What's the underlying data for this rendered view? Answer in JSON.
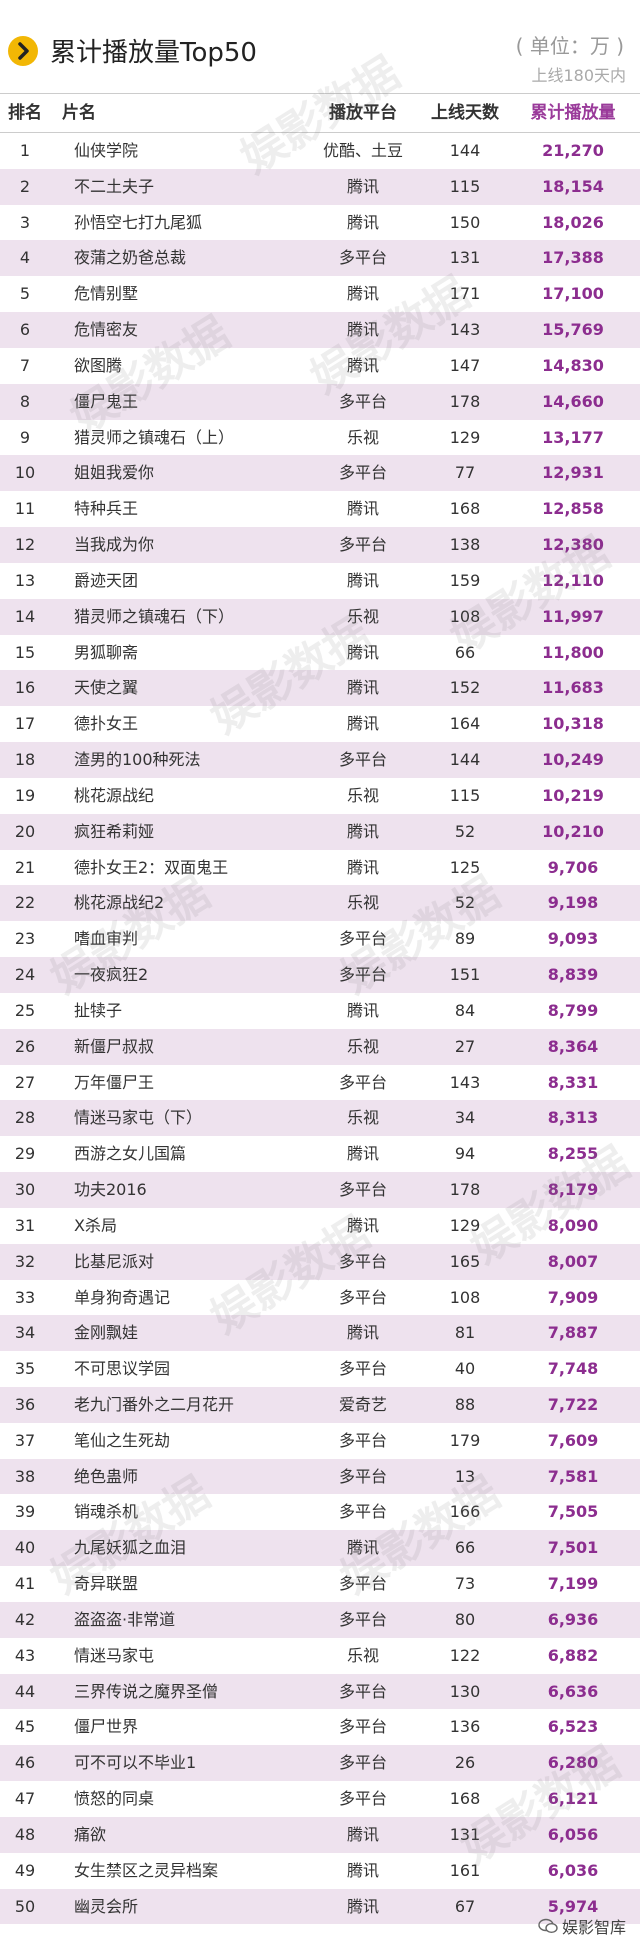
{
  "header": {
    "title": "累计播放量Top50",
    "unit": "( 单位：万 )",
    "days_note": "上线180天内",
    "badge_icon": "chevron-right-icon",
    "badge_color": "#f2b705"
  },
  "columns": {
    "rank": "排名",
    "name": "片名",
    "platform": "播放平台",
    "days": "上线天数",
    "plays": "累计播放量"
  },
  "rows": [
    {
      "rank": "1",
      "name": "仙侠学院",
      "platform": "优酷、土豆",
      "days": "144",
      "plays": "21,270"
    },
    {
      "rank": "2",
      "name": "不二土夫子",
      "platform": "腾讯",
      "days": "115",
      "plays": "18,154"
    },
    {
      "rank": "3",
      "name": "孙悟空七打九尾狐",
      "platform": "腾讯",
      "days": "150",
      "plays": "18,026"
    },
    {
      "rank": "4",
      "name": "夜蒲之奶爸总裁",
      "platform": "多平台",
      "days": "131",
      "plays": "17,388"
    },
    {
      "rank": "5",
      "name": "危情别墅",
      "platform": "腾讯",
      "days": "171",
      "plays": "17,100"
    },
    {
      "rank": "6",
      "name": "危情密友",
      "platform": "腾讯",
      "days": "143",
      "plays": "15,769"
    },
    {
      "rank": "7",
      "name": "欲图腾",
      "platform": "腾讯",
      "days": "147",
      "plays": "14,830"
    },
    {
      "rank": "8",
      "name": "僵尸鬼王",
      "platform": "多平台",
      "days": "178",
      "plays": "14,660"
    },
    {
      "rank": "9",
      "name": "猎灵师之镇魂石（上）",
      "platform": "乐视",
      "days": "129",
      "plays": "13,177"
    },
    {
      "rank": "10",
      "name": "姐姐我爱你",
      "platform": "多平台",
      "days": "77",
      "plays": "12,931"
    },
    {
      "rank": "11",
      "name": "特种兵王",
      "platform": "腾讯",
      "days": "168",
      "plays": "12,858"
    },
    {
      "rank": "12",
      "name": "当我成为你",
      "platform": "多平台",
      "days": "138",
      "plays": "12,380"
    },
    {
      "rank": "13",
      "name": "爵迹天团",
      "platform": "腾讯",
      "days": "159",
      "plays": "12,110"
    },
    {
      "rank": "14",
      "name": "猎灵师之镇魂石（下）",
      "platform": "乐视",
      "days": "108",
      "plays": "11,997"
    },
    {
      "rank": "15",
      "name": "男狐聊斋",
      "platform": "腾讯",
      "days": "66",
      "plays": "11,800"
    },
    {
      "rank": "16",
      "name": "天使之翼",
      "platform": "腾讯",
      "days": "152",
      "plays": "11,683"
    },
    {
      "rank": "17",
      "name": "德扑女王",
      "platform": "腾讯",
      "days": "164",
      "plays": "10,318"
    },
    {
      "rank": "18",
      "name": "渣男的100种死法",
      "platform": "多平台",
      "days": "144",
      "plays": "10,249"
    },
    {
      "rank": "19",
      "name": "桃花源战纪",
      "platform": "乐视",
      "days": "115",
      "plays": "10,219"
    },
    {
      "rank": "20",
      "name": "疯狂希莉娅",
      "platform": "腾讯",
      "days": "52",
      "plays": "10,210"
    },
    {
      "rank": "21",
      "name": "德扑女王2：双面鬼王",
      "platform": "腾讯",
      "days": "125",
      "plays": "9,706"
    },
    {
      "rank": "22",
      "name": "桃花源战纪2",
      "platform": "乐视",
      "days": "52",
      "plays": "9,198"
    },
    {
      "rank": "23",
      "name": "嗜血审判",
      "platform": "多平台",
      "days": "89",
      "plays": "9,093"
    },
    {
      "rank": "24",
      "name": "一夜疯狂2",
      "platform": "多平台",
      "days": "151",
      "plays": "8,839"
    },
    {
      "rank": "25",
      "name": "扯犊子",
      "platform": "腾讯",
      "days": "84",
      "plays": "8,799"
    },
    {
      "rank": "26",
      "name": "新僵尸叔叔",
      "platform": "乐视",
      "days": "27",
      "plays": "8,364"
    },
    {
      "rank": "27",
      "name": "万年僵尸王",
      "platform": "多平台",
      "days": "143",
      "plays": "8,331"
    },
    {
      "rank": "28",
      "name": "情迷马家屯（下）",
      "platform": "乐视",
      "days": "34",
      "plays": "8,313"
    },
    {
      "rank": "29",
      "name": "西游之女儿国篇",
      "platform": "腾讯",
      "days": "94",
      "plays": "8,255"
    },
    {
      "rank": "30",
      "name": "功夫2016",
      "platform": "多平台",
      "days": "178",
      "plays": "8,179"
    },
    {
      "rank": "31",
      "name": "X杀局",
      "platform": "腾讯",
      "days": "129",
      "plays": "8,090"
    },
    {
      "rank": "32",
      "name": "比基尼派对",
      "platform": "多平台",
      "days": "165",
      "plays": "8,007"
    },
    {
      "rank": "33",
      "name": "单身狗奇遇记",
      "platform": "多平台",
      "days": "108",
      "plays": "7,909"
    },
    {
      "rank": "34",
      "name": "金刚飘娃",
      "platform": "腾讯",
      "days": "81",
      "plays": "7,887"
    },
    {
      "rank": "35",
      "name": "不可思议学园",
      "platform": "多平台",
      "days": "40",
      "plays": "7,748"
    },
    {
      "rank": "36",
      "name": "老九门番外之二月花开",
      "platform": "爱奇艺",
      "days": "88",
      "plays": "7,722"
    },
    {
      "rank": "37",
      "name": "笔仙之生死劫",
      "platform": "多平台",
      "days": "179",
      "plays": "7,609"
    },
    {
      "rank": "38",
      "name": "绝色蛊师",
      "platform": "多平台",
      "days": "13",
      "plays": "7,581"
    },
    {
      "rank": "39",
      "name": "销魂杀机",
      "platform": "多平台",
      "days": "166",
      "plays": "7,505"
    },
    {
      "rank": "40",
      "name": "九尾妖狐之血泪",
      "platform": "腾讯",
      "days": "66",
      "plays": "7,501"
    },
    {
      "rank": "41",
      "name": "奇异联盟",
      "platform": "多平台",
      "days": "73",
      "plays": "7,199"
    },
    {
      "rank": "42",
      "name": "盗盗盗·非常道",
      "platform": "多平台",
      "days": "80",
      "plays": "6,936"
    },
    {
      "rank": "43",
      "name": "情迷马家屯",
      "platform": "乐视",
      "days": "122",
      "plays": "6,882"
    },
    {
      "rank": "44",
      "name": "三界传说之魔界圣僧",
      "platform": "多平台",
      "days": "130",
      "plays": "6,636"
    },
    {
      "rank": "45",
      "name": "僵尸世界",
      "platform": "多平台",
      "days": "136",
      "plays": "6,523"
    },
    {
      "rank": "46",
      "name": "可不可以不毕业1",
      "platform": "多平台",
      "days": "26",
      "plays": "6,280"
    },
    {
      "rank": "47",
      "name": "愤怒的同桌",
      "platform": "多平台",
      "days": "168",
      "plays": "6,121"
    },
    {
      "rank": "48",
      "name": "痛欲",
      "platform": "腾讯",
      "days": "131",
      "plays": "6,056"
    },
    {
      "rank": "49",
      "name": "女生禁区之灵异档案",
      "platform": "腾讯",
      "days": "161",
      "plays": "6,036"
    },
    {
      "rank": "50",
      "name": "幽灵会所",
      "platform": "腾讯",
      "days": "67",
      "plays": "5,974"
    }
  ],
  "colors": {
    "alt_row": "#eee2ee",
    "plays_text": "#8c2d8f"
  },
  "watermark": "娱影数据",
  "footer": {
    "brand": "娱影智库",
    "icon": "wechat-icon"
  }
}
